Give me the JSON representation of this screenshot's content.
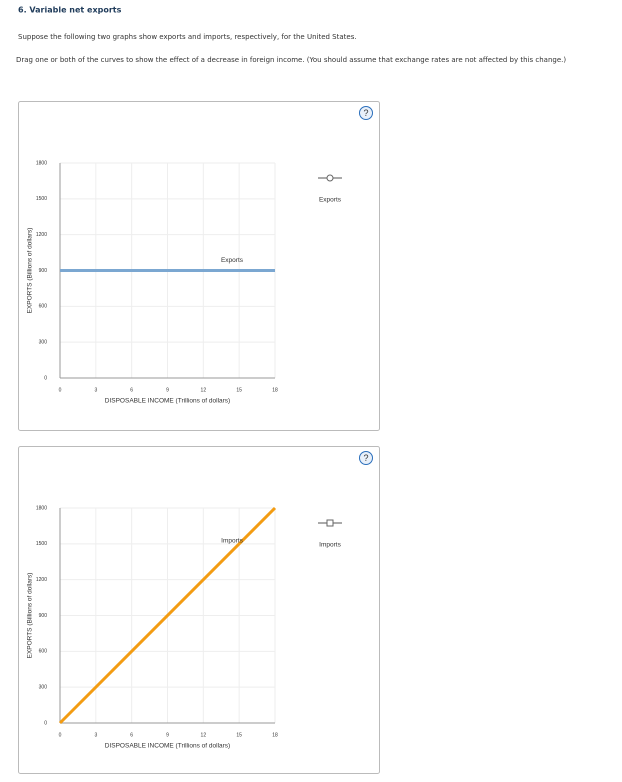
{
  "header": {
    "title": "6. Variable net exports"
  },
  "intro": "Suppose the following two graphs show exports and imports, respectively, for the United States.",
  "instructions": "Drag one or both of the curves to show the effect of a decrease in foreign income. (You should assume that exchange rates are not affected by this change.)",
  "help_icon": "?",
  "chart_data": [
    {
      "type": "line",
      "xlabel": "DISPOSABLE INCOME (Trillions of dollars)",
      "ylabel": "EXPORTS (Billions of dollars)",
      "x": [
        0,
        18
      ],
      "series": [
        {
          "name": "Exports",
          "color": "#7ba7d1",
          "marker": "circle",
          "values": [
            900,
            900
          ]
        }
      ],
      "xlim": [
        0,
        18
      ],
      "xticks": [
        0,
        3,
        6,
        9,
        12,
        15,
        18
      ],
      "ylim": [
        0,
        1800
      ],
      "yticks": [
        0,
        300,
        600,
        900,
        1200,
        1500,
        1800
      ],
      "grid": true
    },
    {
      "type": "line",
      "xlabel": "DISPOSABLE INCOME (Trillions of dollars)",
      "ylabel": "EXPORTS (Billions of dollars)",
      "x": [
        0,
        18
      ],
      "series": [
        {
          "name": "Imports",
          "color": "#f39c12",
          "marker": "square",
          "values": [
            0,
            1800
          ]
        }
      ],
      "xlim": [
        0,
        18
      ],
      "xticks": [
        0,
        3,
        6,
        9,
        12,
        15,
        18
      ],
      "ylim": [
        0,
        1800
      ],
      "yticks": [
        0,
        300,
        600,
        900,
        1200,
        1500,
        1800
      ],
      "grid": true
    }
  ]
}
